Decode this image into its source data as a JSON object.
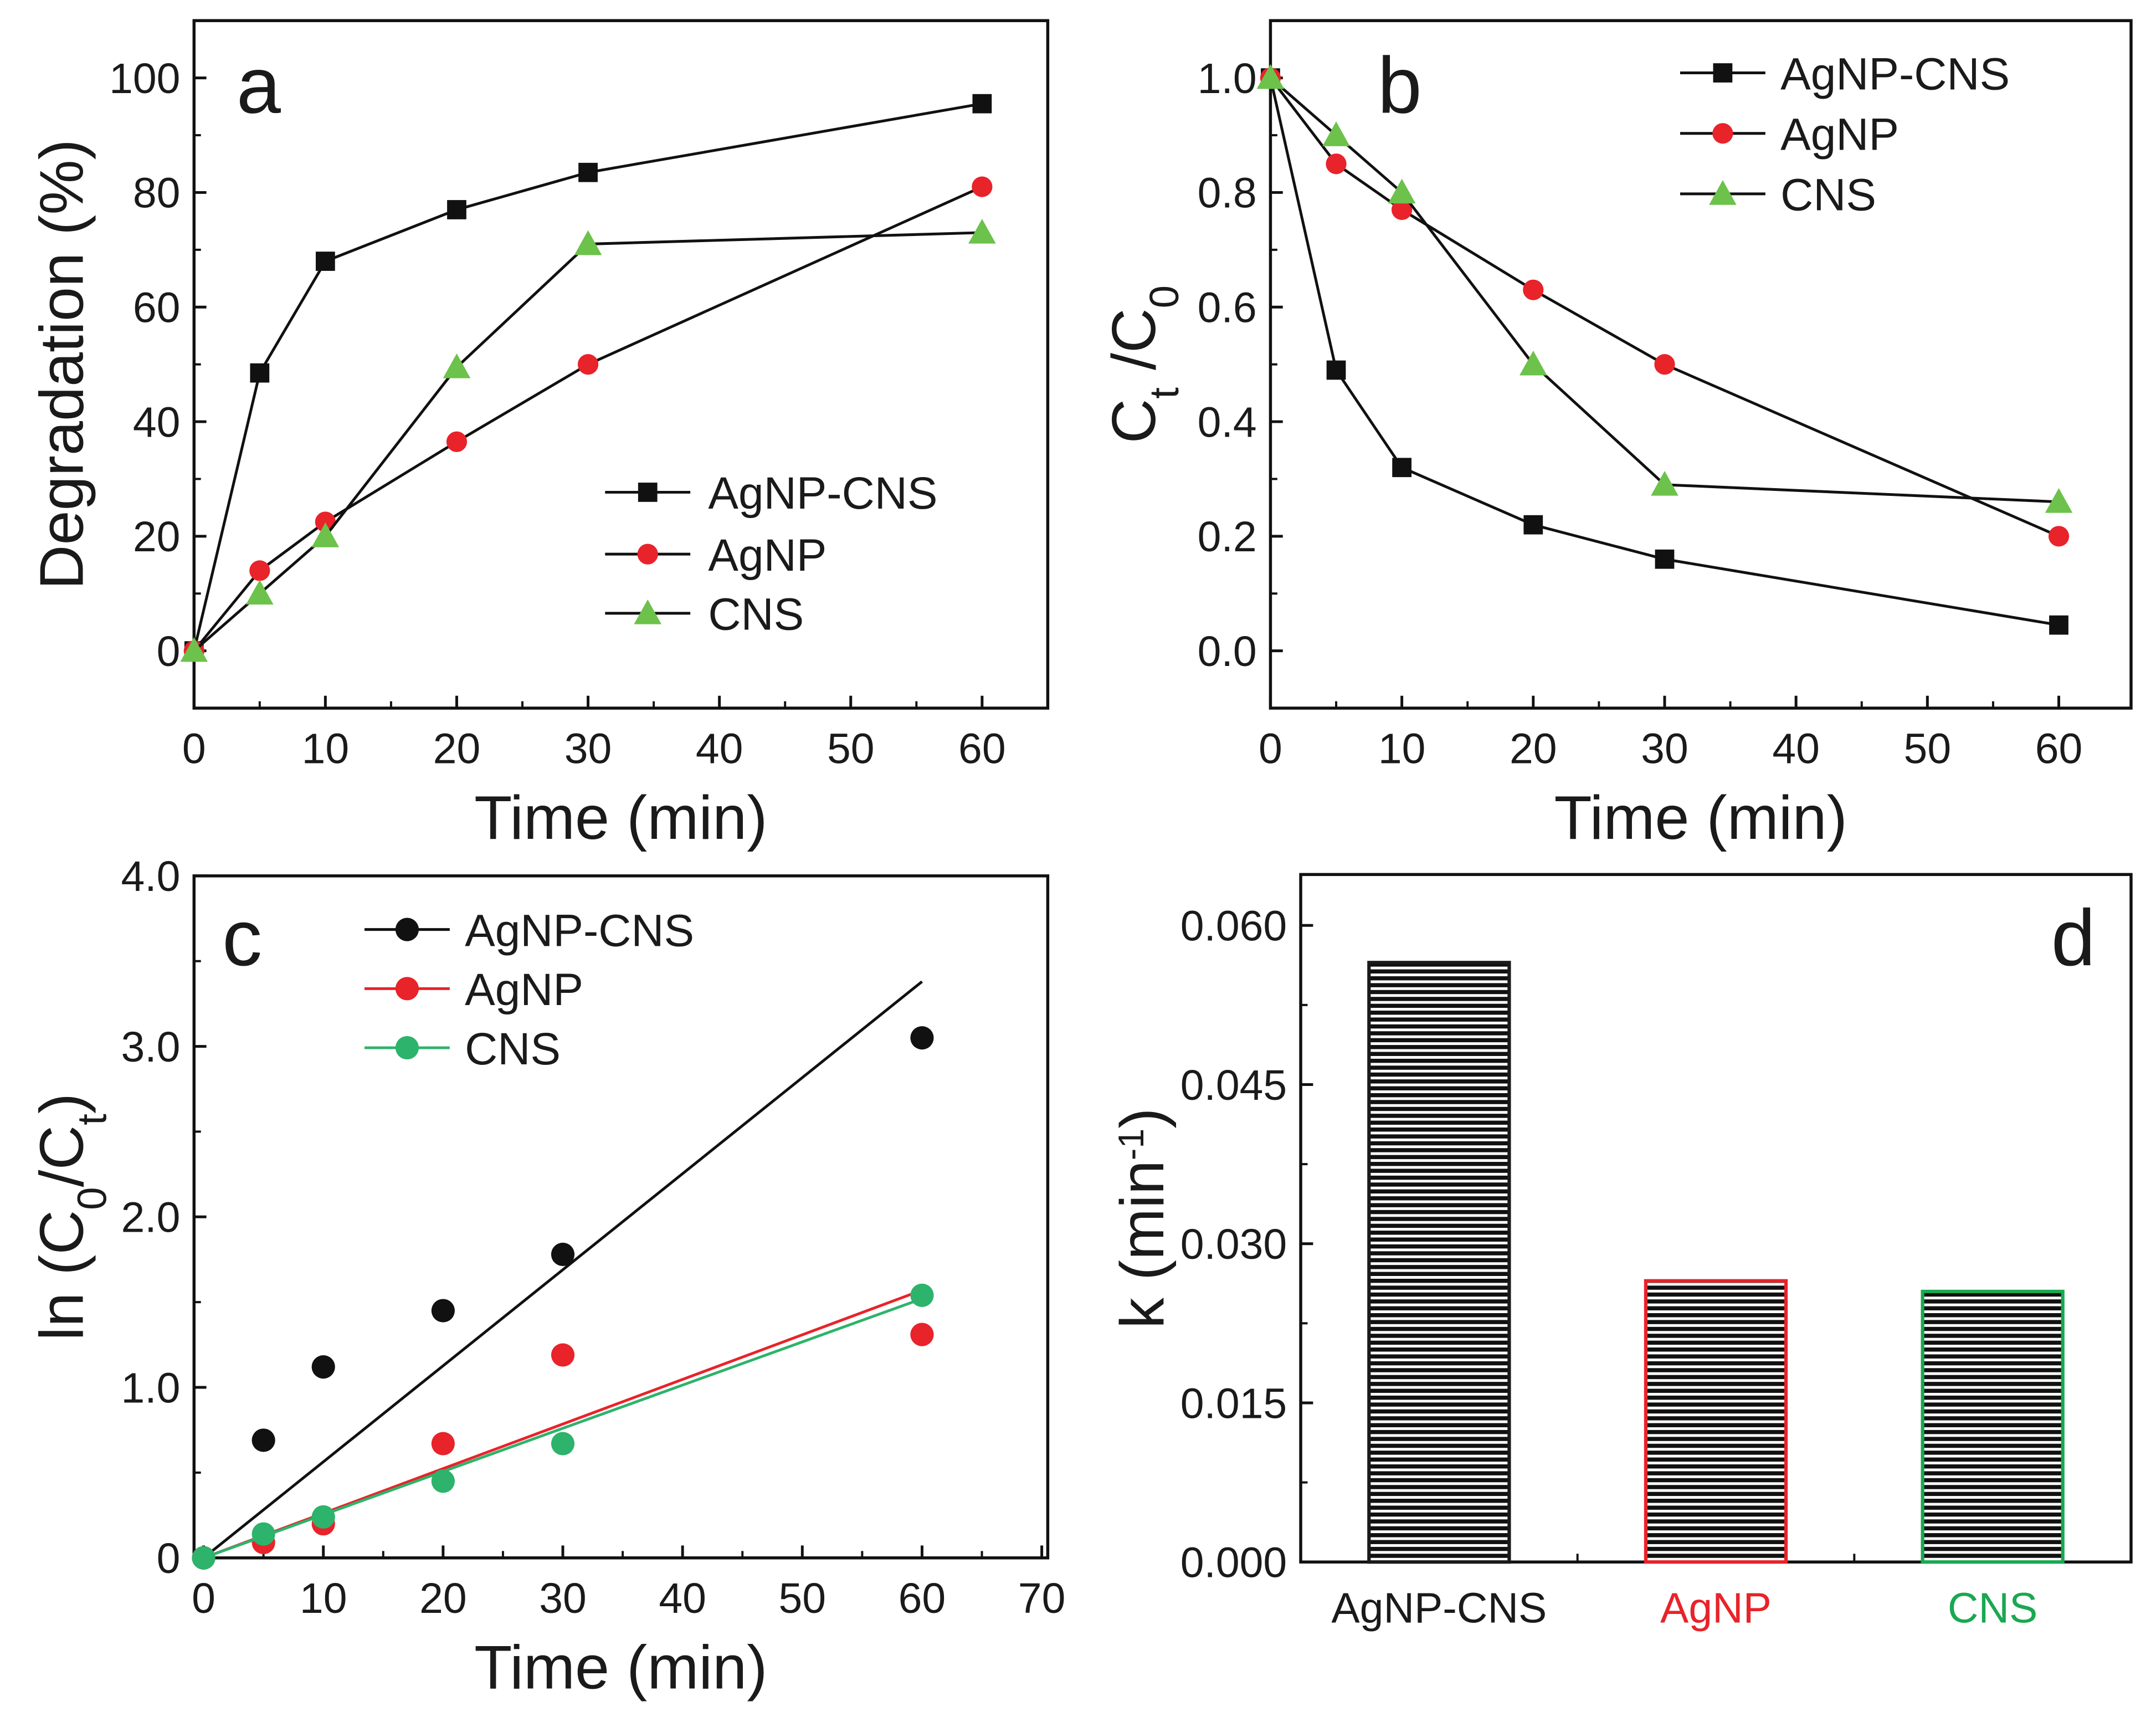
{
  "colors": {
    "black": "#111111",
    "red": "#e8232a",
    "green_tri": "#6cc24a",
    "green_dot": "#2db36b"
  },
  "chart_data": [
    {
      "panel": "a",
      "type": "line",
      "xlabel": "Time (min)",
      "ylabel": [
        {
          "t": "Degradation (%)"
        }
      ],
      "xlim": [
        0,
        65
      ],
      "ylim": [
        -10,
        110
      ],
      "xticks": [
        "0",
        "10",
        "20",
        "30",
        "40",
        "50",
        "60"
      ],
      "xtick_values": [
        0,
        10,
        20,
        30,
        40,
        50,
        60
      ],
      "yticks": [
        "0",
        "20",
        "40",
        "60",
        "80",
        "100"
      ],
      "ytick_values": [
        0,
        20,
        40,
        60,
        80,
        100
      ],
      "legend_position": "lower-right",
      "x": [
        0,
        5,
        10,
        20,
        30,
        60
      ],
      "series": [
        {
          "name": "AgNP-CNS",
          "marker": "square",
          "color": "#111111",
          "values": [
            0,
            48.5,
            68,
            77,
            83.5,
            95.5
          ]
        },
        {
          "name": "AgNP",
          "marker": "circle",
          "color": "#e8232a",
          "values": [
            0,
            14,
            22.5,
            36.5,
            50,
            81
          ]
        },
        {
          "name": "CNS",
          "marker": "triangle",
          "color": "#6cc24a",
          "values": [
            0,
            10,
            20,
            49.5,
            71,
            73
          ]
        }
      ]
    },
    {
      "panel": "b",
      "type": "line",
      "xlabel": "Time (min)",
      "ylabel": [
        {
          "t": "C"
        },
        {
          "t": "t",
          "sub": true
        },
        {
          "t": " /C"
        },
        {
          "t": "0",
          "sub": true
        }
      ],
      "xlim": [
        0,
        65.5
      ],
      "ylim": [
        -0.1,
        1.1
      ],
      "xticks": [
        "0",
        "10",
        "20",
        "30",
        "40",
        "50",
        "60"
      ],
      "xtick_values": [
        0,
        10,
        20,
        30,
        40,
        50,
        60
      ],
      "yticks": [
        "0.0",
        "0.2",
        "0.4",
        "0.6",
        "0.8",
        "1.0"
      ],
      "ytick_values": [
        0,
        0.2,
        0.4,
        0.6,
        0.8,
        1.0
      ],
      "legend_position": "top-right",
      "x": [
        0,
        5,
        10,
        20,
        30,
        60
      ],
      "series": [
        {
          "name": "AgNP-CNS",
          "marker": "square",
          "color": "#111111",
          "values": [
            1.0,
            0.49,
            0.32,
            0.22,
            0.16,
            0.045
          ]
        },
        {
          "name": "AgNP",
          "marker": "circle",
          "color": "#e8232a",
          "values": [
            1.0,
            0.85,
            0.77,
            0.63,
            0.5,
            0.2
          ]
        },
        {
          "name": "CNS",
          "marker": "triangle",
          "color": "#6cc24a",
          "values": [
            1.0,
            0.9,
            0.8,
            0.5,
            0.29,
            0.26
          ]
        }
      ]
    },
    {
      "panel": "c",
      "type": "scatter",
      "xlabel": "Time (min)",
      "ylabel": [
        {
          "t": "ln (C"
        },
        {
          "t": "0",
          "sub": true
        },
        {
          "t": "/C"
        },
        {
          "t": "t",
          "sub": true
        },
        {
          "t": ")"
        }
      ],
      "xlim": [
        -0.8,
        70.5
      ],
      "ylim": [
        0,
        4.0
      ],
      "xticks": [
        "0",
        "10",
        "20",
        "30",
        "40",
        "50",
        "60",
        "70"
      ],
      "xtick_values": [
        0,
        10,
        20,
        30,
        40,
        50,
        60,
        70
      ],
      "yticks": [
        "0",
        "1.0",
        "2.0",
        "3.0",
        "4.0"
      ],
      "ytick_values": [
        0,
        1,
        2,
        3,
        4
      ],
      "legend_position": "top-left",
      "x": [
        0,
        5,
        10,
        20,
        30,
        60
      ],
      "series": [
        {
          "name": "AgNP-CNS",
          "marker": "circle",
          "color": "#111111",
          "values": [
            0,
            0.69,
            1.12,
            1.45,
            1.78,
            3.05
          ],
          "fit": [
            0,
            3.38
          ]
        },
        {
          "name": "AgNP",
          "marker": "circle",
          "color": "#e8232a",
          "values": [
            0,
            0.09,
            0.2,
            0.67,
            1.19,
            1.31
          ],
          "fit": [
            0,
            1.57
          ]
        },
        {
          "name": "CNS",
          "marker": "circle",
          "color": "#2db36b",
          "values": [
            0,
            0.14,
            0.24,
            0.45,
            0.67,
            1.54
          ],
          "fit": [
            0,
            1.52
          ]
        }
      ]
    },
    {
      "panel": "d",
      "type": "bar",
      "xlabel": "",
      "ylabel": [
        {
          "t": "k (min"
        },
        {
          "t": "-1",
          "sup": true
        },
        {
          "t": ")"
        }
      ],
      "ylim": [
        0,
        0.0648
      ],
      "yticks": [
        "0.000",
        "0.015",
        "0.030",
        "0.045",
        "0.060"
      ],
      "ytick_values": [
        0,
        0.015,
        0.03,
        0.045,
        0.06
      ],
      "categories": [
        "AgNP-CNS",
        "AgNP",
        "CNS"
      ],
      "category_colors": [
        "#1a1a1a",
        "#e8232a",
        "#1aa851"
      ],
      "values": [
        0.0565,
        0.0265,
        0.0255
      ]
    }
  ],
  "panel_letters": [
    "a",
    "b",
    "c",
    "d"
  ]
}
